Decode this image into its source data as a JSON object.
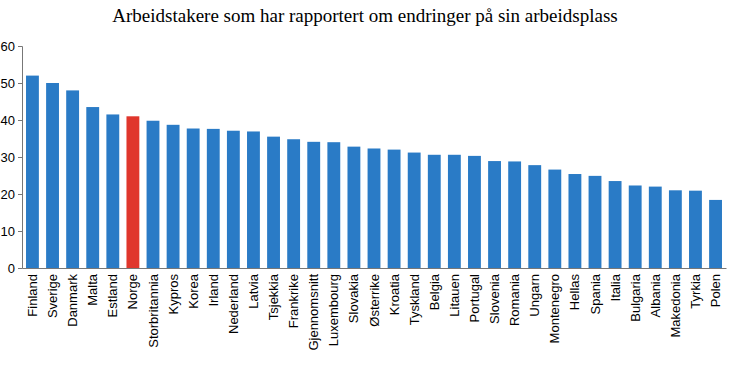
{
  "chart_data": {
    "type": "bar",
    "title": "Arbeidstakere som har rapportert om endringer på sin arbeidsplass",
    "categories": [
      "Finland",
      "Sverige",
      "Danmark",
      "Malta",
      "Estland",
      "Norge",
      "Storbritannia",
      "Kypros",
      "Korea",
      "Irland",
      "Nederland",
      "Latvia",
      "Tsjekkia",
      "Frankrike",
      "Gjennomsnitt",
      "Luxembourg",
      "Slovakia",
      "Østerrike",
      "Kroatia",
      "Tyskland",
      "Belgia",
      "Litauen",
      "Portugal",
      "Slovenia",
      "Romania",
      "Ungarn",
      "Montenegro",
      "Hellas",
      "Spania",
      "Italia",
      "Bulgaria",
      "Albania",
      "Makedonia",
      "Tyrkia",
      "Polen"
    ],
    "values": [
      52,
      50,
      48,
      43.5,
      41.5,
      41,
      39.8,
      38.7,
      37.7,
      37.6,
      37.1,
      36.9,
      35.5,
      34.8,
      34.1,
      34,
      32.8,
      32.3,
      32,
      31.2,
      30.6,
      30.6,
      30.3,
      28.9,
      28.8,
      27.8,
      26.6,
      25.4,
      24.9,
      23.5,
      22.3,
      22,
      21,
      20.9,
      18.4
    ],
    "colors": [
      "#2a7bc6",
      "#2a7bc6",
      "#2a7bc6",
      "#2a7bc6",
      "#2a7bc6",
      "#e0362c",
      "#2a7bc6",
      "#2a7bc6",
      "#2a7bc6",
      "#2a7bc6",
      "#2a7bc6",
      "#2a7bc6",
      "#2a7bc6",
      "#2a7bc6",
      "#2a7bc6",
      "#2a7bc6",
      "#2a7bc6",
      "#2a7bc6",
      "#2a7bc6",
      "#2a7bc6",
      "#2a7bc6",
      "#2a7bc6",
      "#2a7bc6",
      "#2a7bc6",
      "#2a7bc6",
      "#2a7bc6",
      "#2a7bc6",
      "#2a7bc6",
      "#2a7bc6",
      "#2a7bc6",
      "#2a7bc6",
      "#2a7bc6",
      "#2a7bc6",
      "#2a7bc6",
      "#2a7bc6"
    ],
    "ylim": [
      0,
      60
    ],
    "yticks": [
      0,
      10,
      20,
      30,
      40,
      50,
      60
    ],
    "grid": false
  }
}
